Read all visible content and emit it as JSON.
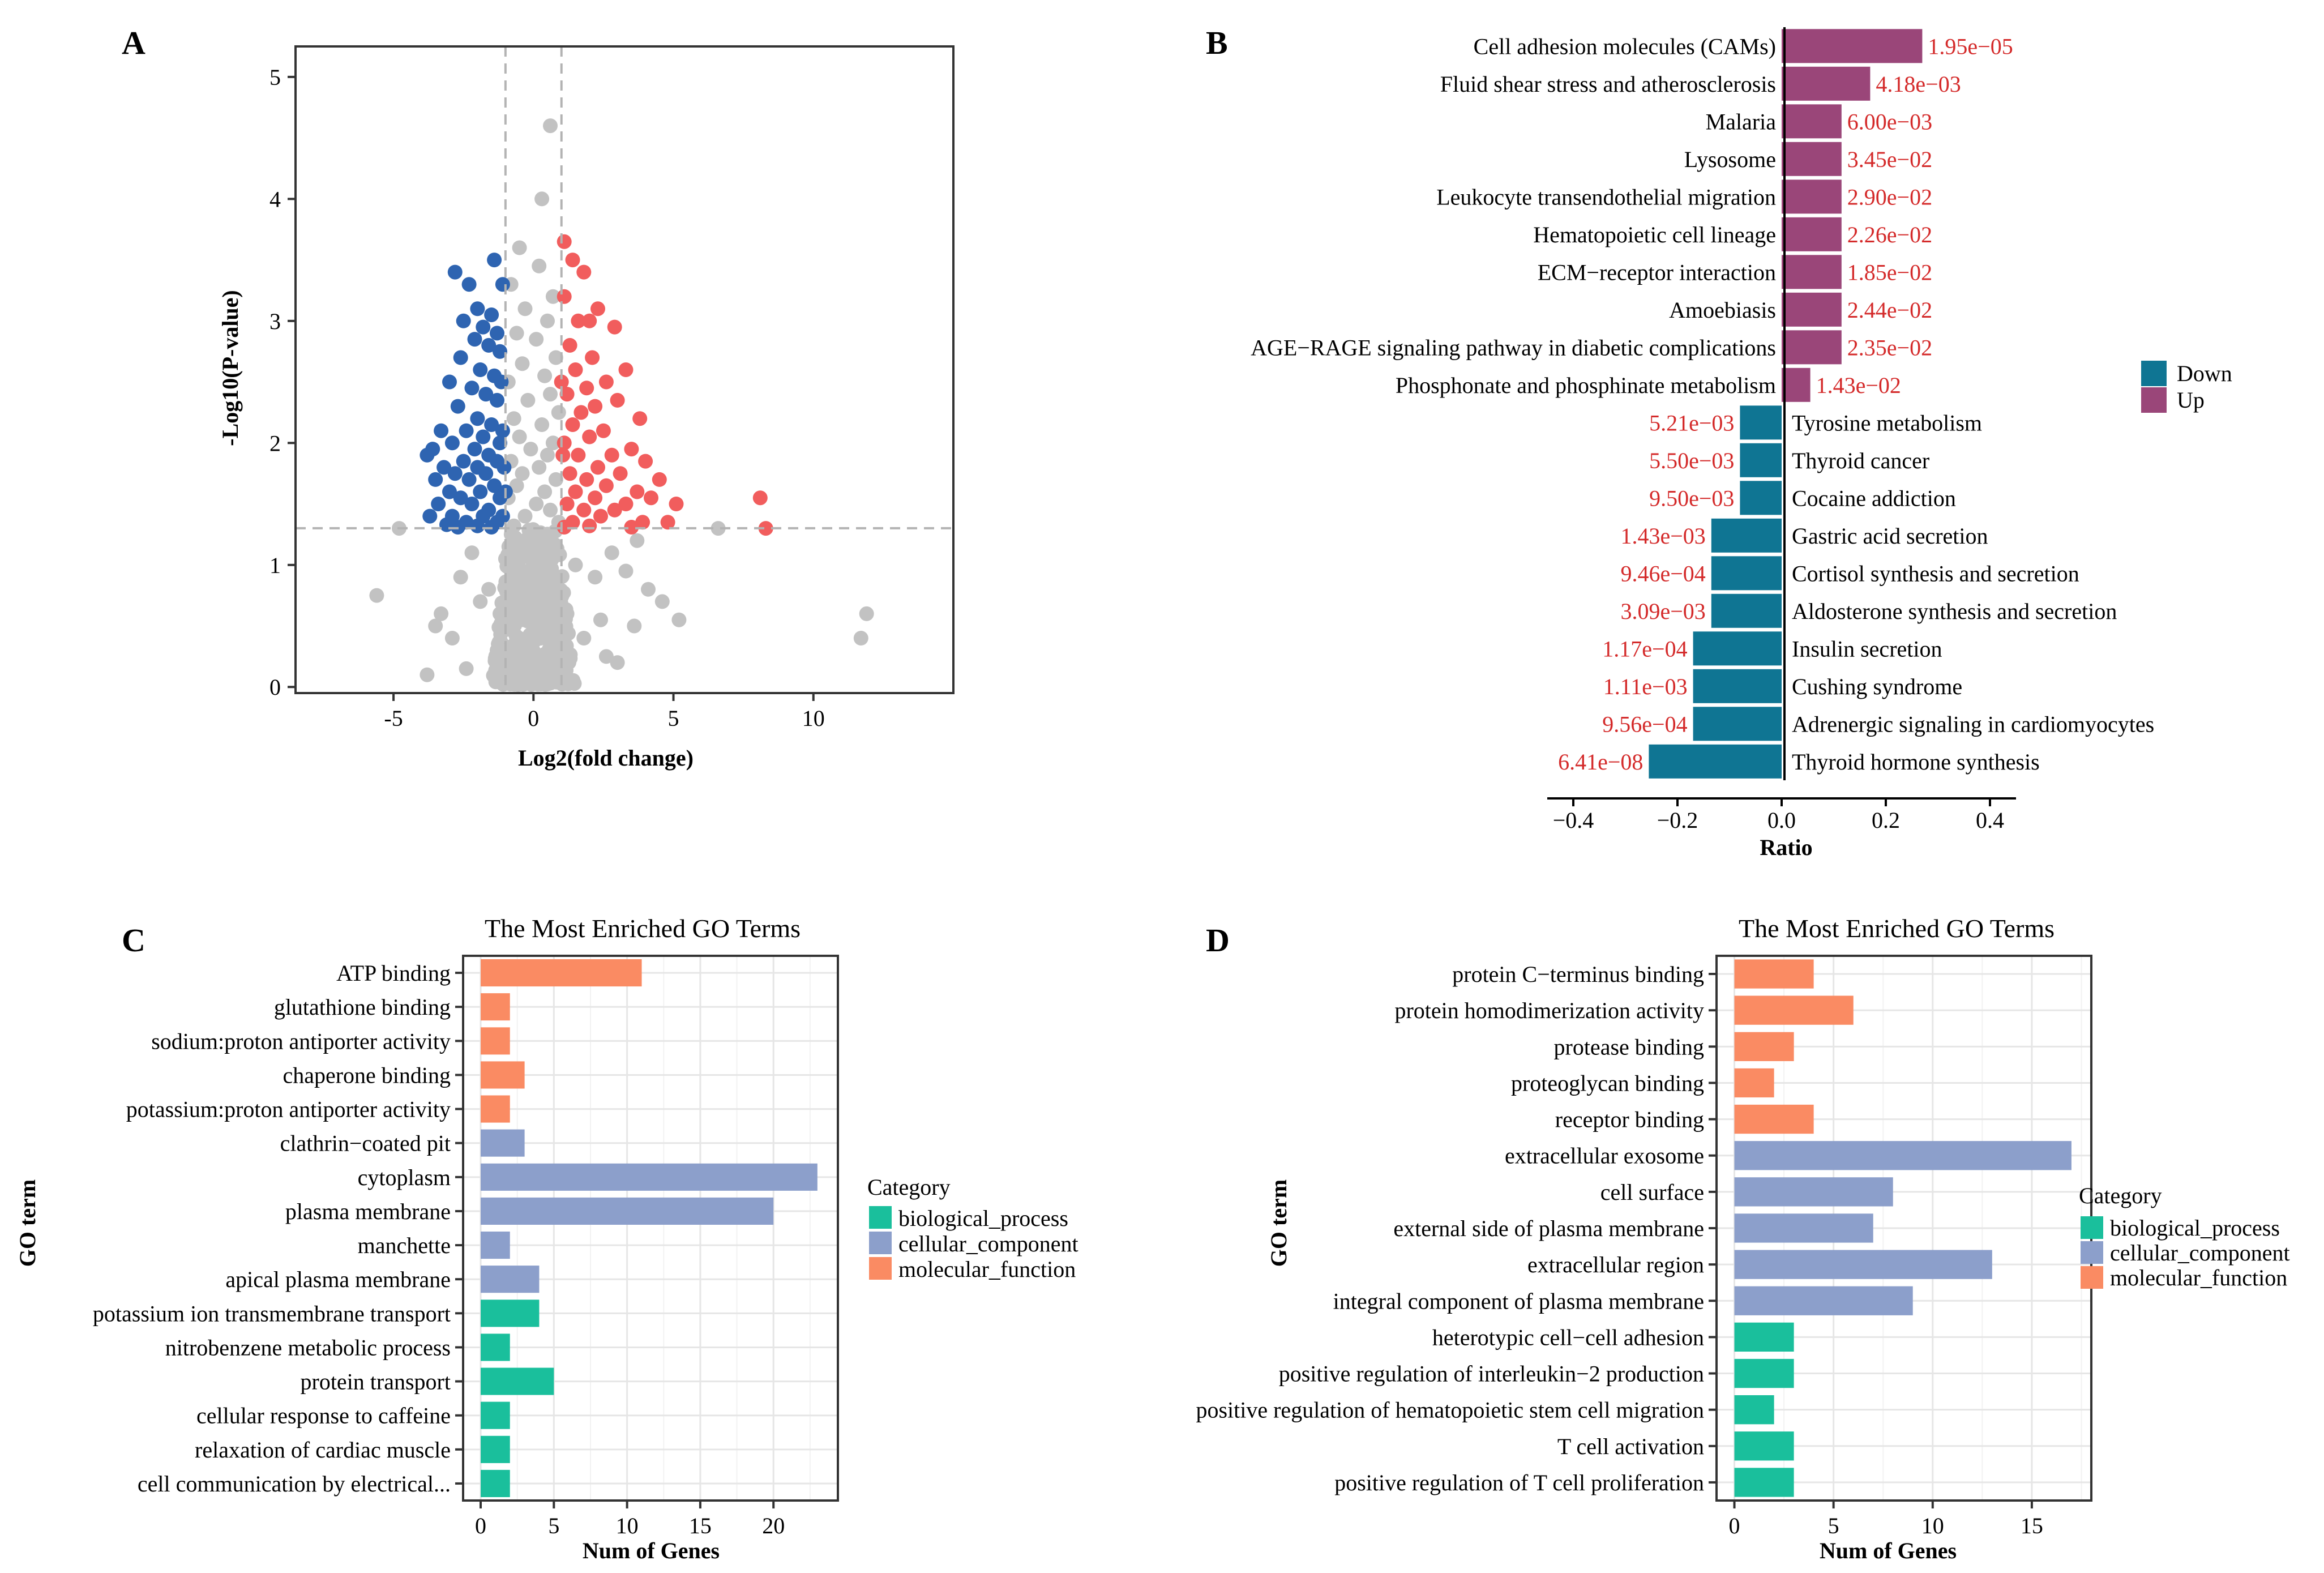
{
  "panels": {
    "a": "A",
    "b": "B",
    "c": "C",
    "d": "D"
  },
  "chart_data": [
    {
      "panel": "A",
      "type": "scatter",
      "title": "",
      "xlabel": "Log2(fold change)",
      "ylabel": "-Log10(P-value)",
      "xlim": [
        -8.5,
        15
      ],
      "ylim": [
        -0.05,
        5.25
      ],
      "xticks": [
        -5,
        0,
        5,
        10
      ],
      "yticks": [
        0,
        1,
        2,
        3,
        4,
        5
      ],
      "thresholds": {
        "x": [
          -1,
          1
        ],
        "y": 1.301
      },
      "colors": {
        "down": "#2e64b1",
        "up": "#f15d5d",
        "ns": "#c2c2c2",
        "threshold": "#b3b3b3"
      },
      "series": [
        {
          "name": "down",
          "points": [
            [
              -2.8,
              3.4
            ],
            [
              -2.3,
              3.3
            ],
            [
              -1.4,
              3.5
            ],
            [
              -1.1,
              3.3
            ],
            [
              -2.0,
              3.1
            ],
            [
              -1.5,
              3.05
            ],
            [
              -2.5,
              3.0
            ],
            [
              -1.8,
              2.95
            ],
            [
              -1.3,
              2.9
            ],
            [
              -2.1,
              2.85
            ],
            [
              -1.6,
              2.8
            ],
            [
              -1.2,
              2.75
            ],
            [
              -2.6,
              2.7
            ],
            [
              -1.9,
              2.6
            ],
            [
              -1.4,
              2.55
            ],
            [
              -3.0,
              2.5
            ],
            [
              -2.2,
              2.45
            ],
            [
              -1.7,
              2.4
            ],
            [
              -1.3,
              2.35
            ],
            [
              -2.7,
              2.3
            ],
            [
              -2.0,
              2.2
            ],
            [
              -1.5,
              2.15
            ],
            [
              -3.3,
              2.1
            ],
            [
              -2.4,
              2.1
            ],
            [
              -1.8,
              2.05
            ],
            [
              -1.2,
              2.0
            ],
            [
              -2.9,
              2.0
            ],
            [
              -3.6,
              1.95
            ],
            [
              -2.1,
              1.95
            ],
            [
              -1.6,
              1.9
            ],
            [
              -3.8,
              1.9
            ],
            [
              -2.5,
              1.85
            ],
            [
              -1.3,
              1.85
            ],
            [
              -3.2,
              1.8
            ],
            [
              -2.0,
              1.8
            ],
            [
              -1.7,
              1.75
            ],
            [
              -2.8,
              1.75
            ],
            [
              -3.5,
              1.7
            ],
            [
              -2.3,
              1.7
            ],
            [
              -1.4,
              1.65
            ],
            [
              -3.0,
              1.6
            ],
            [
              -1.9,
              1.6
            ],
            [
              -2.6,
              1.55
            ],
            [
              -1.2,
              1.55
            ],
            [
              -3.4,
              1.5
            ],
            [
              -2.2,
              1.5
            ],
            [
              -1.6,
              1.45
            ],
            [
              -3.7,
              1.4
            ],
            [
              -2.9,
              1.4
            ],
            [
              -1.8,
              1.4
            ],
            [
              -2.4,
              1.35
            ],
            [
              -1.3,
              1.35
            ],
            [
              -3.1,
              1.33
            ],
            [
              -2.0,
              1.32
            ],
            [
              -1.5,
              1.31
            ],
            [
              -2.7,
              1.31
            ],
            [
              -1.1,
              1.4
            ],
            [
              -1.0,
              1.6
            ],
            [
              -1.05,
              1.8
            ],
            [
              -1.1,
              2.1
            ],
            [
              -1.15,
              2.5
            ]
          ]
        },
        {
          "name": "up",
          "points": [
            [
              1.1,
              3.65
            ],
            [
              1.4,
              3.5
            ],
            [
              1.8,
              3.4
            ],
            [
              2.3,
              3.1
            ],
            [
              2.0,
              3.0
            ],
            [
              1.6,
              3.0
            ],
            [
              2.9,
              2.95
            ],
            [
              1.3,
              2.8
            ],
            [
              2.1,
              2.7
            ],
            [
              3.3,
              2.6
            ],
            [
              1.5,
              2.6
            ],
            [
              2.6,
              2.5
            ],
            [
              1.9,
              2.45
            ],
            [
              1.2,
              2.4
            ],
            [
              3.0,
              2.35
            ],
            [
              2.2,
              2.3
            ],
            [
              1.7,
              2.25
            ],
            [
              3.8,
              2.2
            ],
            [
              1.4,
              2.15
            ],
            [
              2.5,
              2.1
            ],
            [
              2.0,
              2.05
            ],
            [
              1.1,
              2.0
            ],
            [
              3.5,
              1.95
            ],
            [
              2.8,
              1.9
            ],
            [
              1.6,
              1.9
            ],
            [
              4.0,
              1.85
            ],
            [
              2.3,
              1.8
            ],
            [
              1.3,
              1.75
            ],
            [
              3.1,
              1.75
            ],
            [
              1.9,
              1.7
            ],
            [
              4.5,
              1.7
            ],
            [
              2.6,
              1.65
            ],
            [
              1.5,
              1.6
            ],
            [
              3.7,
              1.6
            ],
            [
              2.2,
              1.55
            ],
            [
              1.2,
              1.5
            ],
            [
              3.3,
              1.5
            ],
            [
              1.8,
              1.45
            ],
            [
              2.9,
              1.45
            ],
            [
              5.1,
              1.5
            ],
            [
              4.2,
              1.55
            ],
            [
              2.4,
              1.4
            ],
            [
              1.4,
              1.35
            ],
            [
              3.9,
              1.35
            ],
            [
              2.0,
              1.32
            ],
            [
              1.1,
              1.31
            ],
            [
              3.5,
              1.31
            ],
            [
              8.3,
              1.3
            ],
            [
              8.1,
              1.55
            ],
            [
              4.8,
              1.35
            ],
            [
              1.05,
              1.9
            ],
            [
              1.0,
              2.5
            ],
            [
              1.1,
              3.2
            ]
          ]
        },
        {
          "name": "not-significant",
          "points": [
            [
              0.6,
              4.6
            ],
            [
              0.3,
              4.0
            ],
            [
              -0.5,
              3.6
            ],
            [
              0.2,
              3.45
            ],
            [
              -0.8,
              3.3
            ],
            [
              0.7,
              3.2
            ],
            [
              -0.3,
              3.1
            ],
            [
              0.5,
              3.0
            ],
            [
              -0.6,
              2.9
            ],
            [
              0.1,
              2.85
            ],
            [
              0.8,
              2.7
            ],
            [
              -0.4,
              2.65
            ],
            [
              0.4,
              2.55
            ],
            [
              -0.9,
              2.5
            ],
            [
              0.6,
              2.4
            ],
            [
              -0.2,
              2.35
            ],
            [
              0.9,
              2.25
            ],
            [
              -0.7,
              2.2
            ],
            [
              0.3,
              2.15
            ],
            [
              -0.5,
              2.05
            ],
            [
              0.7,
              2.0
            ],
            [
              -0.1,
              1.95
            ],
            [
              0.5,
              1.9
            ],
            [
              -0.8,
              1.85
            ],
            [
              0.2,
              1.8
            ],
            [
              -0.4,
              1.75
            ],
            [
              0.8,
              1.7
            ],
            [
              -0.6,
              1.65
            ],
            [
              0.4,
              1.6
            ],
            [
              -0.9,
              1.55
            ],
            [
              0.1,
              1.5
            ],
            [
              0.6,
              1.45
            ],
            [
              -0.3,
              1.4
            ],
            [
              0.9,
              1.35
            ],
            [
              -0.7,
              1.32
            ],
            [
              -5.6,
              0.75
            ],
            [
              -4.8,
              1.3
            ],
            [
              -3.8,
              0.1
            ],
            [
              -3.5,
              0.5
            ],
            [
              -3.3,
              0.6
            ],
            [
              -2.6,
              0.9
            ],
            [
              -2.2,
              1.1
            ],
            [
              -1.6,
              0.8
            ],
            [
              -2.9,
              0.4
            ],
            [
              -1.3,
              0.3
            ],
            [
              -1.9,
              0.7
            ],
            [
              -1.0,
              1.05
            ],
            [
              1.5,
              1.0
            ],
            [
              2.2,
              0.9
            ],
            [
              2.8,
              1.1
            ],
            [
              3.3,
              0.95
            ],
            [
              3.7,
              1.2
            ],
            [
              4.1,
              0.8
            ],
            [
              4.6,
              0.7
            ],
            [
              5.2,
              0.55
            ],
            [
              3.6,
              0.5
            ],
            [
              2.4,
              0.55
            ],
            [
              6.6,
              1.3
            ],
            [
              11.7,
              0.4
            ],
            [
              11.9,
              0.6
            ],
            [
              1.8,
              0.4
            ],
            [
              2.6,
              0.25
            ],
            [
              -2.4,
              0.15
            ],
            [
              3.0,
              0.2
            ],
            [
              -1.2,
              0.6
            ],
            [
              1.2,
              0.6
            ]
          ]
        }
      ],
      "ns_cloud": {
        "x_range": [
          -1.5,
          1.5
        ],
        "y_range": [
          0.02,
          1.3
        ]
      }
    },
    {
      "panel": "B",
      "type": "bar",
      "orientation": "horizontal",
      "xlabel": "Ratio",
      "xlim": [
        -0.45,
        0.45
      ],
      "xticks": [
        -0.4,
        -0.2,
        0.0,
        0.2,
        0.4
      ],
      "tick_labels": [
        "−0.4",
        "−0.2",
        "0.0",
        "0.2",
        "0.4"
      ],
      "legend": {
        "position": "right",
        "entries": [
          {
            "name": "Down",
            "color": "#0f7593"
          },
          {
            "name": "Up",
            "color": "#9a4679"
          }
        ]
      },
      "annotation_color": "#d42a2a",
      "categories": [
        "Cell adhesion molecules (CAMs)",
        "Fluid shear stress and atherosclerosis",
        "Malaria",
        "Lysosome",
        "Leukocyte transendothelial migration",
        "Hematopoietic cell lineage",
        "ECM−receptor interaction",
        "Amoebiasis",
        "AGE−RAGE signaling pathway in diabetic complications",
        "Phosphonate and phosphinate metabolism",
        "Tyrosine metabolism",
        "Thyroid cancer",
        "Cocaine addiction",
        "Gastric acid secretion",
        "Cortisol synthesis and secretion",
        "Aldosterone synthesis and secretion",
        "Insulin secretion",
        "Cushing syndrome",
        "Adrenergic signaling in cardiomyocytes",
        "Thyroid hormone synthesis"
      ],
      "values": [
        0.27,
        0.17,
        0.115,
        0.115,
        0.115,
        0.115,
        0.115,
        0.115,
        0.115,
        0.055,
        -0.08,
        -0.08,
        -0.08,
        -0.135,
        -0.135,
        -0.135,
        -0.17,
        -0.17,
        -0.17,
        -0.255
      ],
      "groups": [
        "Up",
        "Up",
        "Up",
        "Up",
        "Up",
        "Up",
        "Up",
        "Up",
        "Up",
        "Up",
        "Down",
        "Down",
        "Down",
        "Down",
        "Down",
        "Down",
        "Down",
        "Down",
        "Down",
        "Down"
      ],
      "pvalue_labels": [
        "1.95e−05",
        "4.18e−03",
        "6.00e−03",
        "3.45e−02",
        "2.90e−02",
        "2.26e−02",
        "1.85e−02",
        "2.44e−02",
        "2.35e−02",
        "1.43e−02",
        "5.21e−03",
        "5.50e−03",
        "9.50e−03",
        "1.43e−03",
        "9.46e−04",
        "3.09e−03",
        "1.17e−04",
        "1.11e−03",
        "9.56e−04",
        "6.41e−08"
      ]
    },
    {
      "panel": "C",
      "type": "bar",
      "orientation": "horizontal",
      "title": "The Most Enriched GO Terms",
      "xlabel": "Num of Genes",
      "ylabel": "GO term",
      "xlim": [
        -1.2,
        24.4
      ],
      "xticks": [
        0,
        5,
        10,
        15,
        20
      ],
      "legend": {
        "title": "Category",
        "position": "right",
        "entries": [
          {
            "name": "biological_process",
            "color": "#1abf9c"
          },
          {
            "name": "cellular_component",
            "color": "#8c9fcb"
          },
          {
            "name": "molecular_function",
            "color": "#fa8b63"
          }
        ]
      },
      "categories": [
        "ATP binding",
        "glutathione binding",
        "sodium:proton antiporter activity",
        "chaperone binding",
        "potassium:proton antiporter activity",
        "clathrin−coated pit",
        "cytoplasm",
        "plasma membrane",
        "manchette",
        "apical plasma membrane",
        "potassium ion transmembrane transport",
        "nitrobenzene metabolic process",
        "protein transport",
        "cellular response to caffeine",
        "relaxation of cardiac muscle",
        "cell communication by electrical..."
      ],
      "values": [
        11,
        2,
        2,
        3,
        2,
        3,
        23,
        20,
        2,
        4,
        4,
        2,
        5,
        2,
        2,
        2
      ],
      "groups": [
        "molecular_function",
        "molecular_function",
        "molecular_function",
        "molecular_function",
        "molecular_function",
        "cellular_component",
        "cellular_component",
        "cellular_component",
        "cellular_component",
        "cellular_component",
        "biological_process",
        "biological_process",
        "biological_process",
        "biological_process",
        "biological_process",
        "biological_process"
      ]
    },
    {
      "panel": "D",
      "type": "bar",
      "orientation": "horizontal",
      "title": "The Most Enriched GO Terms",
      "xlabel": "Num of Genes",
      "ylabel": "GO term",
      "xlim": [
        -0.9,
        18.0
      ],
      "xticks": [
        0,
        5,
        10,
        15
      ],
      "legend": {
        "title": "Category",
        "position": "right",
        "entries": [
          {
            "name": "biological_process",
            "color": "#1abf9c"
          },
          {
            "name": "cellular_component",
            "color": "#8c9fcb"
          },
          {
            "name": "molecular_function",
            "color": "#fa8b63"
          }
        ]
      },
      "categories": [
        "protein C−terminus binding",
        "protein homodimerization activity",
        "protease binding",
        "proteoglycan binding",
        "receptor binding",
        "extracellular exosome",
        "cell surface",
        "external side of plasma membrane",
        "extracellular region",
        "integral component of plasma membrane",
        "heterotypic cell−cell adhesion",
        "positive regulation of interleukin−2 production",
        "positive regulation of hematopoietic stem cell migration",
        "T cell activation",
        "positive regulation of T cell proliferation"
      ],
      "values": [
        4,
        6,
        3,
        2,
        4,
        17,
        8,
        7,
        13,
        9,
        3,
        3,
        2,
        3,
        3
      ],
      "groups": [
        "molecular_function",
        "molecular_function",
        "molecular_function",
        "molecular_function",
        "molecular_function",
        "cellular_component",
        "cellular_component",
        "cellular_component",
        "cellular_component",
        "cellular_component",
        "biological_process",
        "biological_process",
        "biological_process",
        "biological_process",
        "biological_process"
      ]
    }
  ]
}
